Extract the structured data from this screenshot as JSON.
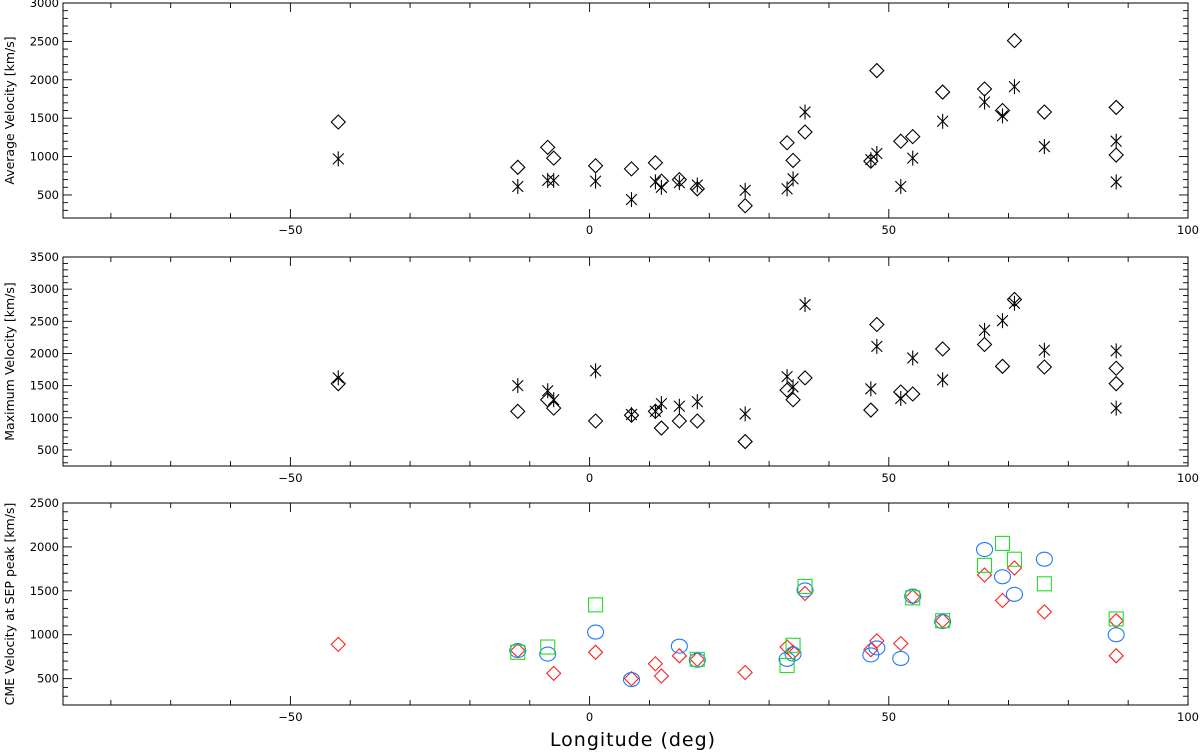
{
  "chart_data": [
    {
      "type": "scatter",
      "title": "",
      "xlabel": "",
      "ylabel": "Average Velocity [km/s]",
      "xlim": [
        -88,
        100
      ],
      "ylim": [
        200,
        3000
      ],
      "x_ticks": [
        -50,
        0,
        50,
        100
      ],
      "y_ticks": [
        500,
        1000,
        1500,
        2000,
        2500,
        3000
      ],
      "grid": false,
      "series": [
        {
          "marker": "diamond",
          "color": "#000000",
          "points": [
            [
              -42,
              1450
            ],
            [
              -12,
              860
            ],
            [
              -7,
              1120
            ],
            [
              -6,
              980
            ],
            [
              1,
              880
            ],
            [
              7,
              840
            ],
            [
              11,
              920
            ],
            [
              12,
              680
            ],
            [
              15,
              700
            ],
            [
              18,
              580
            ],
            [
              26,
              360
            ],
            [
              33,
              1180
            ],
            [
              34,
              950
            ],
            [
              36,
              1320
            ],
            [
              47,
              940
            ],
            [
              48,
              2120
            ],
            [
              52,
              1200
            ],
            [
              54,
              1260
            ],
            [
              59,
              1840
            ],
            [
              66,
              1880
            ],
            [
              69,
              1600
            ],
            [
              71,
              2510
            ],
            [
              76,
              1580
            ],
            [
              88,
              1640
            ],
            [
              88,
              1020
            ]
          ]
        },
        {
          "marker": "asterisk",
          "color": "#000000",
          "points": [
            [
              -42,
              970
            ],
            [
              -12,
              610
            ],
            [
              -7,
              690
            ],
            [
              -6,
              690
            ],
            [
              1,
              680
            ],
            [
              7,
              440
            ],
            [
              11,
              670
            ],
            [
              12,
              600
            ],
            [
              15,
              660
            ],
            [
              18,
              630
            ],
            [
              26,
              560
            ],
            [
              33,
              580
            ],
            [
              34,
              710
            ],
            [
              36,
              1580
            ],
            [
              47,
              960
            ],
            [
              48,
              1040
            ],
            [
              52,
              610
            ],
            [
              54,
              980
            ],
            [
              59,
              1460
            ],
            [
              66,
              1710
            ],
            [
              69,
              1530
            ],
            [
              71,
              1910
            ],
            [
              76,
              1130
            ],
            [
              88,
              1200
            ],
            [
              88,
              670
            ]
          ]
        }
      ]
    },
    {
      "type": "scatter",
      "title": "",
      "xlabel": "",
      "ylabel": "Maximum Velocity [km/s]",
      "xlim": [
        -88,
        100
      ],
      "ylim": [
        250,
        3500
      ],
      "x_ticks": [
        -50,
        0,
        50,
        100
      ],
      "y_ticks": [
        500,
        1000,
        1500,
        2000,
        2500,
        3000,
        3500
      ],
      "grid": false,
      "series": [
        {
          "marker": "diamond",
          "color": "#000000",
          "points": [
            [
              -42,
              1530
            ],
            [
              -12,
              1100
            ],
            [
              -7,
              1280
            ],
            [
              -6,
              1150
            ],
            [
              1,
              950
            ],
            [
              7,
              1040
            ],
            [
              11,
              1100
            ],
            [
              12,
              840
            ],
            [
              15,
              950
            ],
            [
              18,
              950
            ],
            [
              26,
              630
            ],
            [
              33,
              1430
            ],
            [
              34,
              1280
            ],
            [
              36,
              1620
            ],
            [
              47,
              1120
            ],
            [
              48,
              2450
            ],
            [
              52,
              1400
            ],
            [
              54,
              1370
            ],
            [
              59,
              2070
            ],
            [
              66,
              2140
            ],
            [
              69,
              1800
            ],
            [
              71,
              2840
            ],
            [
              76,
              1790
            ],
            [
              88,
              1770
            ],
            [
              88,
              1530
            ]
          ]
        },
        {
          "marker": "asterisk",
          "color": "#000000",
          "points": [
            [
              -42,
              1620
            ],
            [
              -12,
              1500
            ],
            [
              -7,
              1420
            ],
            [
              -6,
              1280
            ],
            [
              1,
              1730
            ],
            [
              7,
              1050
            ],
            [
              11,
              1100
            ],
            [
              12,
              1220
            ],
            [
              15,
              1180
            ],
            [
              18,
              1250
            ],
            [
              26,
              1060
            ],
            [
              33,
              1640
            ],
            [
              34,
              1480
            ],
            [
              36,
              2760
            ],
            [
              47,
              1450
            ],
            [
              48,
              2110
            ],
            [
              52,
              1300
            ],
            [
              54,
              1930
            ],
            [
              59,
              1590
            ],
            [
              66,
              2360
            ],
            [
              69,
              2510
            ],
            [
              71,
              2780
            ],
            [
              76,
              2050
            ],
            [
              88,
              2040
            ],
            [
              88,
              1150
            ]
          ]
        }
      ]
    },
    {
      "type": "scatter",
      "title": "",
      "xlabel": "Longitude (deg)",
      "ylabel": "CME Velocity at SEP peak [km/s]",
      "xlim": [
        -88,
        100
      ],
      "ylim": [
        200,
        2500
      ],
      "x_ticks": [
        -50,
        0,
        50,
        100
      ],
      "y_ticks": [
        500,
        1000,
        1500,
        2000,
        2500
      ],
      "grid": false,
      "series": [
        {
          "marker": "diamond",
          "color": "#ff2020",
          "points": [
            [
              -42,
              890
            ],
            [
              -12,
              820
            ],
            [
              -6,
              560
            ],
            [
              1,
              800
            ],
            [
              7,
              500
            ],
            [
              11,
              670
            ],
            [
              12,
              530
            ],
            [
              15,
              760
            ],
            [
              18,
              720
            ],
            [
              26,
              570
            ],
            [
              33,
              860
            ],
            [
              34,
              800
            ],
            [
              36,
              1470
            ],
            [
              47,
              830
            ],
            [
              48,
              930
            ],
            [
              52,
              900
            ],
            [
              54,
              1430
            ],
            [
              59,
              1160
            ],
            [
              66,
              1680
            ],
            [
              69,
              1390
            ],
            [
              71,
              1760
            ],
            [
              76,
              1260
            ],
            [
              88,
              1160
            ],
            [
              88,
              760
            ]
          ]
        },
        {
          "marker": "circle",
          "color": "#1e78ff",
          "points": [
            [
              -12,
              820
            ],
            [
              -7,
              780
            ],
            [
              1,
              1030
            ],
            [
              7,
              490
            ],
            [
              15,
              870
            ],
            [
              18,
              710
            ],
            [
              33,
              720
            ],
            [
              34,
              780
            ],
            [
              36,
              1510
            ],
            [
              47,
              770
            ],
            [
              48,
              850
            ],
            [
              52,
              730
            ],
            [
              54,
              1440
            ],
            [
              59,
              1150
            ],
            [
              66,
              1970
            ],
            [
              69,
              1660
            ],
            [
              71,
              1460
            ],
            [
              76,
              1860
            ],
            [
              88,
              1000
            ]
          ]
        },
        {
          "marker": "square",
          "color": "#22dd22",
          "points": [
            [
              -12,
              800
            ],
            [
              -7,
              860
            ],
            [
              1,
              1340
            ],
            [
              18,
              720
            ],
            [
              33,
              650
            ],
            [
              34,
              880
            ],
            [
              36,
              1550
            ],
            [
              54,
              1420
            ],
            [
              59,
              1160
            ],
            [
              66,
              1790
            ],
            [
              69,
              2040
            ],
            [
              71,
              1860
            ],
            [
              76,
              1580
            ],
            [
              88,
              1180
            ]
          ]
        }
      ]
    }
  ]
}
